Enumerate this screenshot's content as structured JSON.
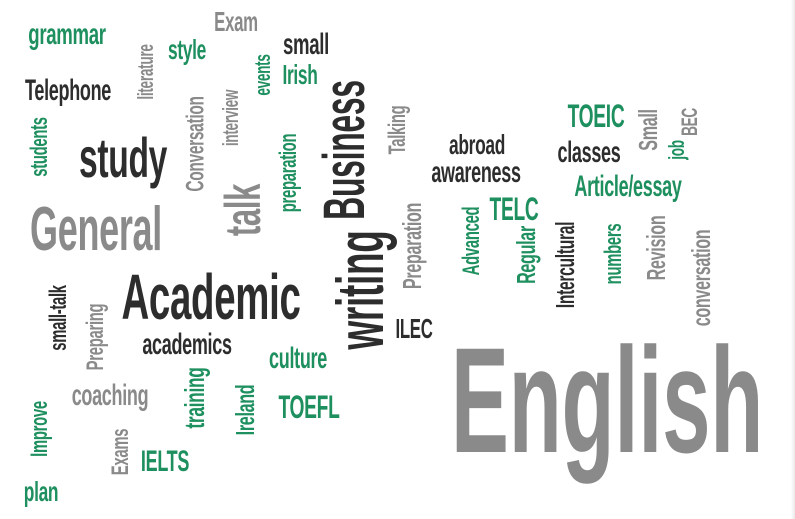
{
  "colors": {
    "dark": "#2d2d2d",
    "gray": "#8a8a8a",
    "green": "#1e8f5e"
  },
  "words": [
    {
      "id": "english",
      "text": "English",
      "color": "gray"
    },
    {
      "id": "writing",
      "text": "writing",
      "color": "dark"
    },
    {
      "id": "business",
      "text": "Business",
      "color": "dark"
    },
    {
      "id": "academic",
      "text": "Academic",
      "color": "dark"
    },
    {
      "id": "general",
      "text": "General",
      "color": "gray"
    },
    {
      "id": "study",
      "text": "study",
      "color": "dark"
    },
    {
      "id": "talk",
      "text": "talk",
      "color": "gray"
    },
    {
      "id": "grammar",
      "text": "grammar",
      "color": "green"
    },
    {
      "id": "literature",
      "text": "literature",
      "color": "gray"
    },
    {
      "id": "style",
      "text": "style",
      "color": "green"
    },
    {
      "id": "exam",
      "text": "Exam",
      "color": "gray"
    },
    {
      "id": "small",
      "text": "small",
      "color": "dark"
    },
    {
      "id": "irish",
      "text": "Irish",
      "color": "green"
    },
    {
      "id": "events",
      "text": "events",
      "color": "green"
    },
    {
      "id": "telephone",
      "text": "Telephone",
      "color": "dark"
    },
    {
      "id": "students",
      "text": "students",
      "color": "green"
    },
    {
      "id": "conversation-1",
      "text": "Conversation",
      "color": "gray"
    },
    {
      "id": "interview",
      "text": "interview",
      "color": "gray"
    },
    {
      "id": "preparation-1",
      "text": "preparation",
      "color": "green"
    },
    {
      "id": "talking",
      "text": "Talking",
      "color": "gray"
    },
    {
      "id": "abroad",
      "text": "abroad",
      "color": "dark"
    },
    {
      "id": "awareness",
      "text": "awareness",
      "color": "dark"
    },
    {
      "id": "toeic",
      "text": "TOEIC",
      "color": "green"
    },
    {
      "id": "small-2",
      "text": "Small",
      "color": "gray"
    },
    {
      "id": "classes",
      "text": "classes",
      "color": "dark"
    },
    {
      "id": "job",
      "text": "job",
      "color": "green"
    },
    {
      "id": "bec",
      "text": "BEC",
      "color": "gray"
    },
    {
      "id": "article-essay",
      "text": "Article/essay",
      "color": "green"
    },
    {
      "id": "telc",
      "text": "TELC",
      "color": "green"
    },
    {
      "id": "preparation-2",
      "text": "Preparation",
      "color": "gray"
    },
    {
      "id": "advanced",
      "text": "Advanced",
      "color": "green"
    },
    {
      "id": "regular",
      "text": "Regular",
      "color": "green"
    },
    {
      "id": "intercultural",
      "text": "Intercultural",
      "color": "dark"
    },
    {
      "id": "numbers",
      "text": "numbers",
      "color": "green"
    },
    {
      "id": "revision",
      "text": "Revision",
      "color": "gray"
    },
    {
      "id": "conversation-2",
      "text": "conversation",
      "color": "gray"
    },
    {
      "id": "small-talk",
      "text": "small-talk",
      "color": "dark"
    },
    {
      "id": "preparing",
      "text": "Preparing",
      "color": "gray"
    },
    {
      "id": "academics",
      "text": "academics",
      "color": "dark"
    },
    {
      "id": "culture",
      "text": "culture",
      "color": "green"
    },
    {
      "id": "ilec",
      "text": "ILEC",
      "color": "dark"
    },
    {
      "id": "coaching",
      "text": "coaching",
      "color": "gray"
    },
    {
      "id": "training",
      "text": "training",
      "color": "green"
    },
    {
      "id": "ireland",
      "text": "Ireland",
      "color": "green"
    },
    {
      "id": "toefl",
      "text": "TOEFL",
      "color": "green"
    },
    {
      "id": "improve",
      "text": "Improve",
      "color": "green"
    },
    {
      "id": "exams",
      "text": "Exams",
      "color": "gray"
    },
    {
      "id": "ielts",
      "text": "IELTS",
      "color": "green"
    },
    {
      "id": "plan",
      "text": "plan",
      "color": "green"
    }
  ]
}
